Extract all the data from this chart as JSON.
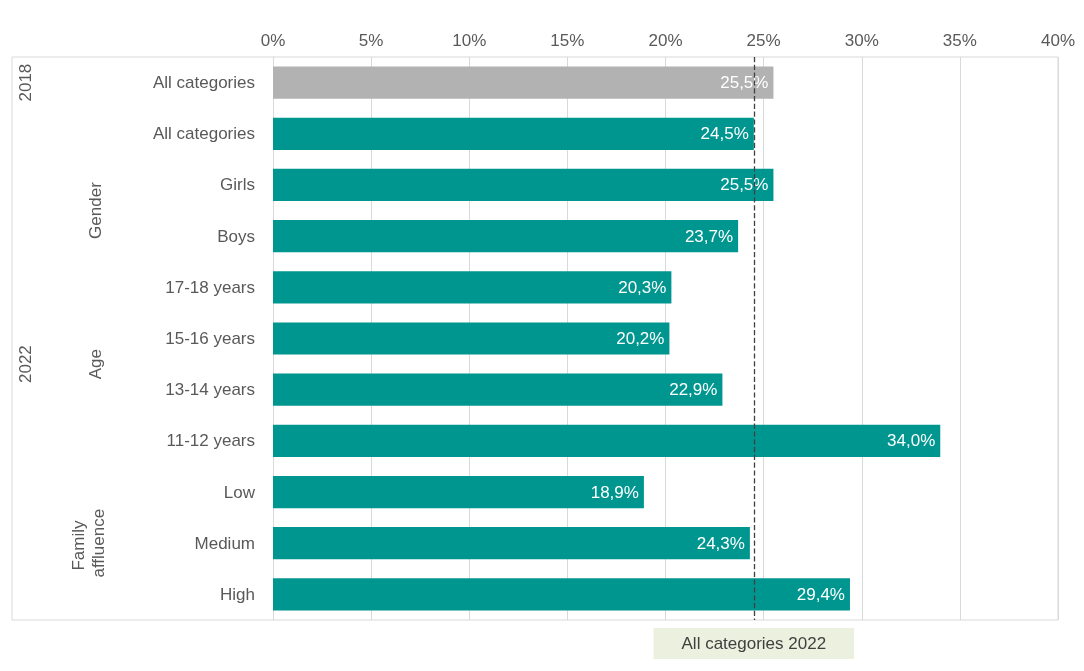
{
  "chart_data": {
    "type": "bar",
    "orientation": "horizontal",
    "categories": [
      "All categories",
      "All categories",
      "Girls",
      "Boys",
      "17-18 years",
      "15-16 years",
      "13-14 years",
      "11-12 years",
      "Low",
      "Medium",
      "High"
    ],
    "values": [
      25.5,
      24.5,
      25.5,
      23.7,
      20.3,
      20.2,
      22.9,
      34.0,
      18.9,
      24.3,
      29.4
    ],
    "value_labels": [
      "25,5%",
      "24,5%",
      "25,5%",
      "23,7%",
      "20,3%",
      "20,2%",
      "22,9%",
      "34,0%",
      "18,9%",
      "24,3%",
      "29,4%"
    ],
    "colors": [
      "#b2b2b2",
      "#009690",
      "#009690",
      "#009690",
      "#009690",
      "#009690",
      "#009690",
      "#009690",
      "#009690",
      "#009690",
      "#009690"
    ],
    "xlim": [
      0,
      40
    ],
    "xticks": [
      {
        "value": 0,
        "label": "0%"
      },
      {
        "value": 5,
        "label": "5%"
      },
      {
        "value": 10,
        "label": "10%"
      },
      {
        "value": 15,
        "label": "15%"
      },
      {
        "value": 20,
        "label": "20%"
      },
      {
        "value": 25,
        "label": "25%"
      },
      {
        "value": 30,
        "label": "30%"
      },
      {
        "value": 35,
        "label": "35%"
      },
      {
        "value": 40,
        "label": "40%"
      }
    ],
    "grid": "x",
    "ref_lines": [
      {
        "axis": "x",
        "value": 24.5,
        "label": "All categories 2022",
        "color": "#404040",
        "line_style": "dashed"
      }
    ],
    "annotations": [
      "2018",
      "2022",
      "Gender",
      "Age",
      "Family affluence"
    ]
  }
}
